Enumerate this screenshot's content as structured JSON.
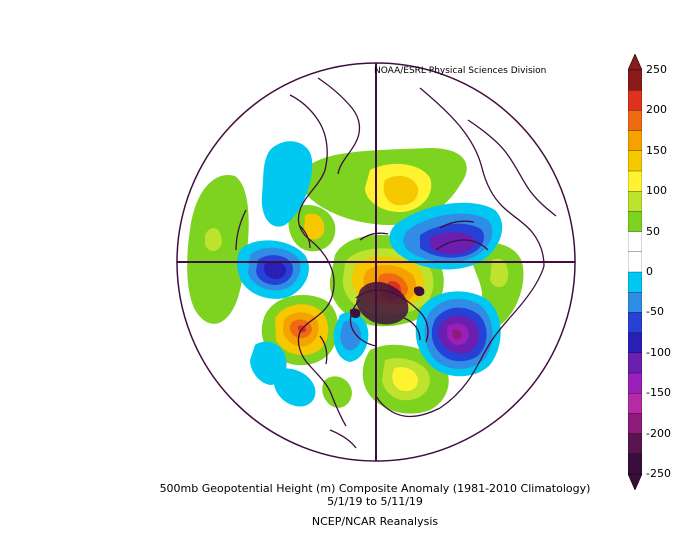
{
  "credit": "NOAA/ESRL Physical Sciences Division",
  "caption": {
    "line1": "500mb Geopotential Height (m) Composite Anomaly (1981-2010 Climatology)",
    "line2": "5/1/19   to 5/11/19",
    "line3": "NCEP/NCAR Reanalysis"
  },
  "colorbar": {
    "labels": [
      "250",
      "200",
      "150",
      "100",
      "50",
      "0",
      "-50",
      "-100",
      "-150",
      "-200",
      "-250"
    ],
    "colors": [
      "#8b1a1a",
      "#e0301e",
      "#f06a12",
      "#f5a200",
      "#f5c800",
      "#fff22e",
      "#bde32e",
      "#7ed321",
      "#ffffff",
      "#ffffff",
      "#00c8f0",
      "#2f8de6",
      "#2741d6",
      "#2a1fb5",
      "#6a1fb0",
      "#9a1fb8",
      "#b52aa6",
      "#8e1a7a",
      "#5a1450",
      "#3a0d3a"
    ]
  },
  "map": {
    "projection": "north polar stereographic",
    "land_line_color": "#3f0f3f"
  }
}
